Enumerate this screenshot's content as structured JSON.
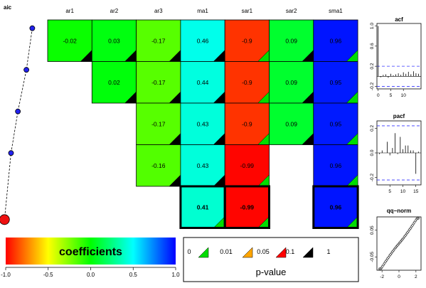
{
  "chart_data": [
    {
      "type": "heatmap",
      "columns": [
        "ar1",
        "ar2",
        "ar3",
        "ma1",
        "sar1",
        "sar2",
        "sma1"
      ],
      "rows": [
        {
          "values": [
            -0.02,
            0.03,
            -0.17,
            0.46,
            -0.9,
            0.09,
            0.96
          ],
          "pvalue_class": [
            3,
            3,
            3,
            3,
            0,
            3,
            0
          ]
        },
        {
          "values": [
            null,
            0.02,
            -0.17,
            0.44,
            -0.9,
            0.09,
            0.95
          ],
          "pvalue_class": [
            null,
            3,
            3,
            3,
            0,
            3,
            0
          ]
        },
        {
          "values": [
            null,
            null,
            -0.17,
            0.43,
            -0.9,
            0.09,
            0.95
          ],
          "pvalue_class": [
            null,
            null,
            3,
            3,
            0,
            3,
            0
          ]
        },
        {
          "values": [
            null,
            null,
            -0.16,
            0.43,
            -0.99,
            null,
            0.96
          ],
          "pvalue_class": [
            null,
            null,
            3,
            3,
            0,
            null,
            0
          ]
        },
        {
          "values": [
            null,
            null,
            null,
            0.41,
            -0.99,
            null,
            0.96
          ],
          "pvalue_class": [
            null,
            null,
            null,
            0,
            0,
            null,
            0
          ]
        }
      ],
      "best_row": 4,
      "colorbar": {
        "label": "coefficients",
        "ticks": [
          "-1.0",
          "-0.5",
          "0.0",
          "0.5",
          "1.0"
        ],
        "range": [
          -1,
          1
        ],
        "colors": [
          "#ff0000",
          "#ffff00",
          "#00ff00",
          "#00ffff",
          "#0000ff"
        ]
      },
      "pvalue_legend": {
        "title": "p-value",
        "breaks": [
          "0",
          "0.01",
          "0.05",
          "0.1",
          "1"
        ],
        "colors": [
          "#00dd00",
          "#ffa500",
          "#ff0000",
          "#000000"
        ]
      }
    },
    {
      "type": "line",
      "title": "aic",
      "points": [
        {
          "x": 0.9,
          "row": 0
        },
        {
          "x": 0.72,
          "row": 1
        },
        {
          "x": 0.46,
          "row": 2
        },
        {
          "x": 0.25,
          "row": 3
        },
        {
          "x": 0.05,
          "row": 4
        }
      ]
    },
    {
      "type": "bar",
      "title": "acf",
      "yticks": [
        "-0.2",
        "0.2",
        "0.6",
        "1.0"
      ],
      "xticks": [
        "0",
        "5",
        "10"
      ],
      "lags": [
        0,
        1,
        2,
        3,
        4,
        5,
        6,
        7,
        8,
        9,
        10,
        11,
        12,
        13,
        14,
        15,
        16
      ],
      "values": [
        1.0,
        -0.02,
        0.03,
        0.04,
        -0.03,
        0.05,
        0.02,
        0.04,
        0.06,
        0.03,
        0.08,
        0.05,
        0.09,
        0.04,
        0.1,
        0.06,
        0.05
      ],
      "ci": 0.2,
      "ylim": [
        -0.25,
        1.05
      ],
      "xlim": [
        -0.5,
        17
      ]
    },
    {
      "type": "bar",
      "title": "pacf",
      "yticks": [
        "-0.2",
        "0.0",
        "0.2"
      ],
      "xticks": [
        "5",
        "10",
        "15"
      ],
      "lags": [
        1,
        2,
        3,
        4,
        5,
        6,
        7,
        8,
        9,
        10,
        11,
        12,
        13,
        14,
        15,
        16
      ],
      "values": [
        -0.01,
        0.02,
        0.0,
        0.09,
        -0.02,
        0.04,
        0.16,
        -0.01,
        0.13,
        0.03,
        0.06,
        0.06,
        0.02,
        0.02,
        -0.17,
        0.01
      ],
      "ci": 0.22,
      "ylim": [
        -0.26,
        0.26
      ],
      "xlim": [
        0,
        17
      ]
    },
    {
      "type": "scatter",
      "title": "qq−norm",
      "xticks": [
        "-2",
        "0",
        "2"
      ],
      "yticks": [
        "-0.05",
        "0.05"
      ],
      "xlim": [
        -2.6,
        2.6
      ],
      "ylim": [
        -0.1,
        0.1
      ]
    }
  ]
}
